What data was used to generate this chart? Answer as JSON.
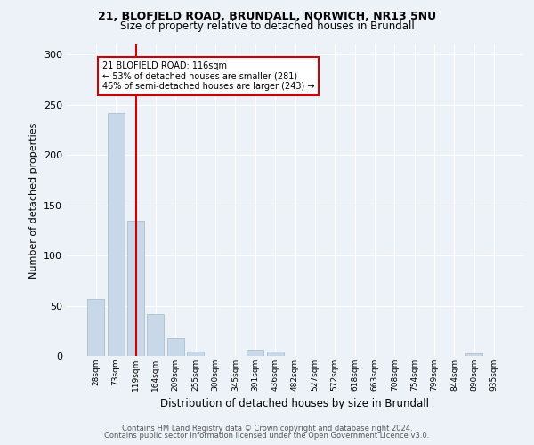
{
  "title1": "21, BLOFIELD ROAD, BRUNDALL, NORWICH, NR13 5NU",
  "title2": "Size of property relative to detached houses in Brundall",
  "xlabel": "Distribution of detached houses by size in Brundall",
  "ylabel": "Number of detached properties",
  "categories": [
    "28sqm",
    "73sqm",
    "119sqm",
    "164sqm",
    "209sqm",
    "255sqm",
    "300sqm",
    "345sqm",
    "391sqm",
    "436sqm",
    "482sqm",
    "527sqm",
    "572sqm",
    "618sqm",
    "663sqm",
    "708sqm",
    "754sqm",
    "799sqm",
    "844sqm",
    "890sqm",
    "935sqm"
  ],
  "values": [
    57,
    242,
    135,
    42,
    18,
    4,
    0,
    0,
    6,
    4,
    0,
    0,
    0,
    0,
    0,
    0,
    0,
    0,
    0,
    3,
    0
  ],
  "bar_color": "#c8d8e8",
  "bar_edge_color": "#a0b8c8",
  "vline_x_index": 2,
  "vline_color": "#cc0000",
  "annotation_text": "21 BLOFIELD ROAD: 116sqm\n← 53% of detached houses are smaller (281)\n46% of semi-detached houses are larger (243) →",
  "annotation_box_color": "#ffffff",
  "annotation_box_edge": "#cc0000",
  "background_color": "#edf2f8",
  "plot_bg_color": "#edf2f8",
  "footer1": "Contains HM Land Registry data © Crown copyright and database right 2024.",
  "footer2": "Contains public sector information licensed under the Open Government Licence v3.0.",
  "ylim": [
    0,
    310
  ],
  "yticks": [
    0,
    50,
    100,
    150,
    200,
    250,
    300
  ]
}
